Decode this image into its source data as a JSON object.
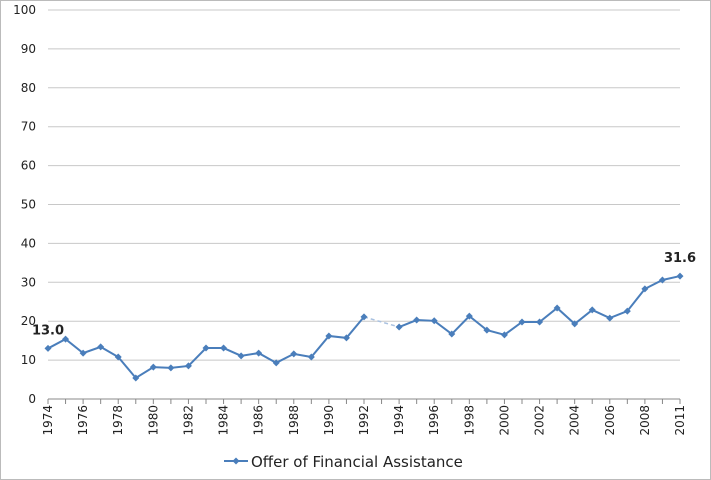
{
  "chart_data": {
    "type": "line",
    "categories": [
      "1974",
      null,
      "1976",
      null,
      "1978",
      null,
      "1980",
      null,
      "1982",
      null,
      "1984",
      null,
      "1986",
      null,
      "1988",
      null,
      "1990",
      null,
      "1992",
      null,
      "1994",
      null,
      "1996",
      null,
      "1998",
      null,
      "2000",
      null,
      "2002",
      null,
      "2004",
      null,
      "2006",
      null,
      "2008",
      null,
      "2011"
    ],
    "series": [
      {
        "name": "Offer of Financial Assistance",
        "color": "#4a7ebb",
        "values": [
          13.0,
          15.4,
          11.8,
          13.4,
          10.8,
          5.4,
          8.2,
          8.0,
          8.5,
          13.1,
          13.1,
          11.1,
          11.8,
          9.3,
          11.6,
          10.8,
          16.2,
          15.7,
          21.1,
          null,
          18.5,
          20.3,
          20.1,
          16.7,
          21.3,
          17.7,
          16.5,
          19.8,
          19.8,
          23.4,
          19.3,
          22.9,
          20.8,
          22.6,
          28.3,
          30.6,
          31.6
        ],
        "value_labels": [
          "13.0",
          null,
          null,
          null,
          null,
          null,
          null,
          null,
          null,
          null,
          null,
          null,
          null,
          null,
          null,
          null,
          null,
          null,
          null,
          null,
          null,
          null,
          null,
          null,
          null,
          null,
          null,
          null,
          null,
          null,
          null,
          null,
          null,
          null,
          null,
          null,
          "31.6"
        ]
      }
    ],
    "ylim": [
      0,
      100
    ],
    "yticks": [
      0,
      10,
      20,
      30,
      40,
      50,
      60,
      70,
      80,
      90,
      100
    ],
    "grid": true,
    "legend": "bottom"
  }
}
